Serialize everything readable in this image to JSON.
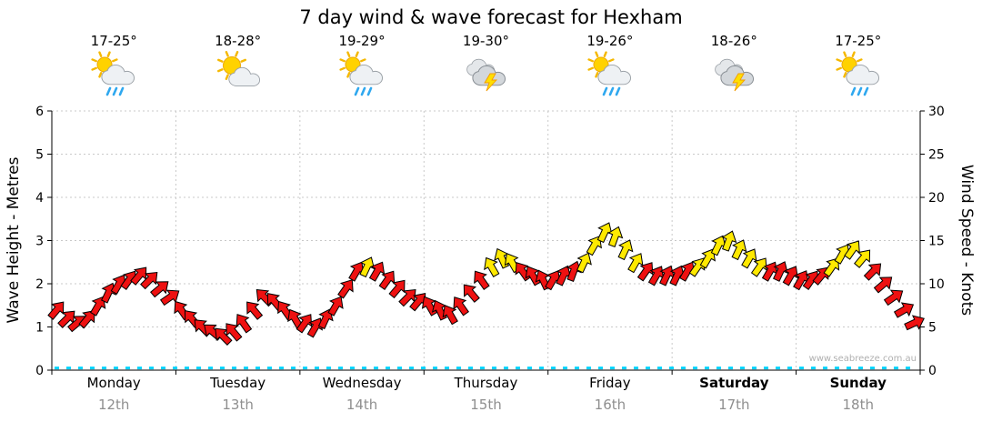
{
  "title": "7 day wind & wave forecast for Hexham",
  "watermark": "www.seabreeze.com.au",
  "colors": {
    "arrow_red": "#ee1111",
    "arrow_yellow": "#ffe900",
    "wave_cyan": "#00d4ff",
    "grid": "#c9c9c9",
    "axis": "#000000",
    "date_gray": "#8f8f8f",
    "watermark_gray": "#b0b0b0"
  },
  "days": [
    {
      "name": "Monday",
      "date": "12th",
      "temp": "17-25°",
      "icon": "sun-cloud-rain",
      "bold": false
    },
    {
      "name": "Tuesday",
      "date": "13th",
      "temp": "18-28°",
      "icon": "sun-cloud",
      "bold": false
    },
    {
      "name": "Wednesday",
      "date": "14th",
      "temp": "19-29°",
      "icon": "sun-cloud-rain",
      "bold": false
    },
    {
      "name": "Thursday",
      "date": "15th",
      "temp": "19-30°",
      "icon": "cloud-storm",
      "bold": false
    },
    {
      "name": "Friday",
      "date": "16th",
      "temp": "19-26°",
      "icon": "sun-cloud-rain",
      "bold": false
    },
    {
      "name": "Saturday",
      "date": "17th",
      "temp": "18-26°",
      "icon": "cloud-storm",
      "bold": true
    },
    {
      "name": "Sunday",
      "date": "18th",
      "temp": "17-25°",
      "icon": "sun-cloud-rain",
      "bold": true
    }
  ],
  "chart_data": {
    "type": "line",
    "title": "7 day wind & wave forecast for Hexham",
    "x_unit": "2-hour steps across 7 days",
    "points_per_day": 12,
    "categories": [
      "Monday 12th",
      "Tuesday 13th",
      "Wednesday 14th",
      "Thursday 15th",
      "Friday 16th",
      "Saturday 17th",
      "Sunday 18th"
    ],
    "left_axis": {
      "label": "Wave Height - Metres",
      "range": [
        0,
        6
      ],
      "ticks": [
        0,
        1,
        2,
        3,
        4,
        5,
        6
      ]
    },
    "right_axis": {
      "label": "Wind Speed - Knots",
      "range": [
        0,
        30
      ],
      "ticks": [
        0,
        5,
        10,
        15,
        20,
        25,
        30
      ]
    },
    "grid": true,
    "legend_position": "none",
    "series": [
      {
        "name": "Wind Speed",
        "unit": "knots",
        "axis": "right",
        "style": "wind-arrows",
        "yellow_threshold_knots": 12,
        "color_rule": {
          "below_threshold": "red",
          "at_or_above_threshold": "yellow"
        },
        "values": [
          7,
          6,
          5.5,
          6,
          7.5,
          9,
          10,
          10.5,
          11,
          10.5,
          9.5,
          8.5,
          7,
          6,
          5,
          4.5,
          4,
          4.5,
          5.5,
          7,
          8.5,
          8,
          7,
          6,
          5.5,
          5,
          6,
          7.5,
          9.5,
          11.5,
          12,
          11.5,
          10.5,
          9.5,
          8.5,
          8,
          7.5,
          7,
          6.5,
          7.5,
          9,
          10.5,
          12,
          13,
          12.5,
          11.5,
          11,
          10.5,
          10.5,
          11,
          11.5,
          12.5,
          14.5,
          16,
          15.5,
          14,
          12.5,
          11.5,
          11,
          11,
          11,
          11.5,
          12,
          13,
          14.5,
          15,
          14,
          13,
          12,
          11.5,
          11.5,
          11,
          10.5,
          10.5,
          11,
          12,
          13.5,
          14,
          13,
          11.5,
          10,
          8.5,
          7,
          5.5
        ],
        "directions_deg": [
          40,
          45,
          50,
          40,
          30,
          25,
          30,
          35,
          40,
          45,
          50,
          55,
          -35,
          -40,
          -45,
          -50,
          -45,
          -40,
          -35,
          -40,
          -45,
          -40,
          -35,
          -30,
          35,
          30,
          25,
          30,
          35,
          30,
          25,
          30,
          35,
          40,
          45,
          40,
          -30,
          -25,
          -30,
          -35,
          -40,
          -35,
          -30,
          -25,
          -30,
          -35,
          -30,
          -25,
          30,
          25,
          20,
          25,
          30,
          25,
          20,
          25,
          30,
          35,
          30,
          25,
          25,
          30,
          35,
          30,
          25,
          20,
          25,
          30,
          35,
          30,
          25,
          30,
          30,
          35,
          40,
          35,
          30,
          35,
          40,
          45,
          50,
          55,
          60,
          65
        ]
      },
      {
        "name": "Wave Height",
        "unit": "m",
        "axis": "left",
        "style": "dashed-line",
        "constant_value": 0.05,
        "color": "cyan"
      }
    ]
  }
}
